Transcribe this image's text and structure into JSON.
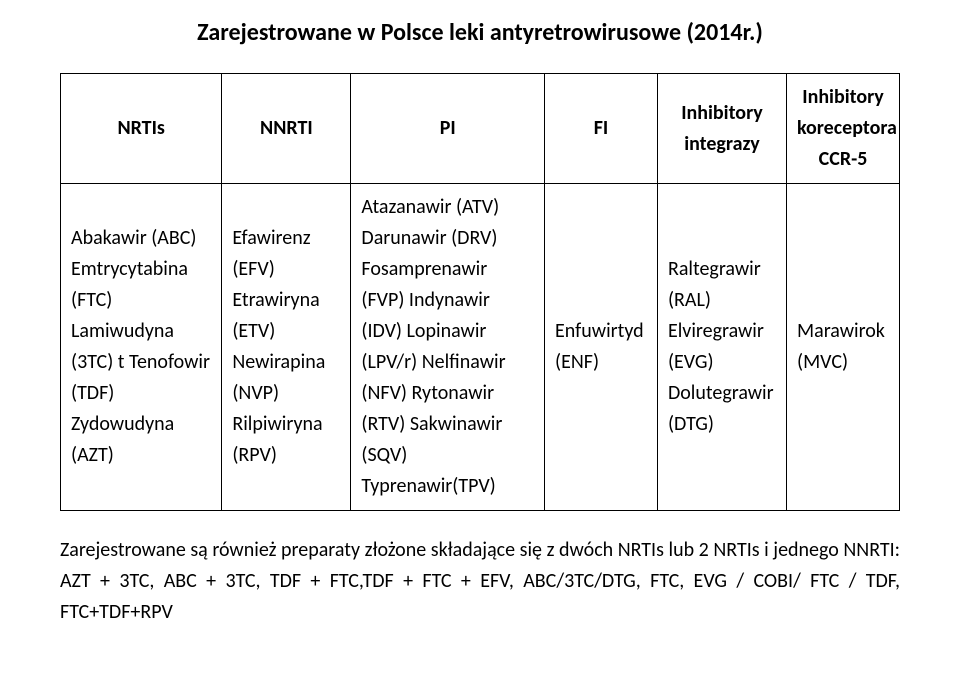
{
  "title": "Zarejestrowane w Polsce leki antyretrowirusowe (2014r.)",
  "headers": {
    "nrtis": "NRTIs",
    "nnrti": "NNRTI",
    "pi": "PI",
    "fi": "FI",
    "inh_int": "Inhibitory integrazy",
    "inh_ccr5": "Inhibitory koreceptora CCR-5"
  },
  "cells": {
    "nrtis": "Abakawir (ABC) Emtrycytabina (FTC) Lamiwudyna (3TC) t Tenofowir (TDF) Zydowudyna (AZT)",
    "nnrti": "Efawirenz (EFV) Etrawiryna (ETV) Newirapina (NVP) Rilpiwiryna (RPV)",
    "pi": "Atazanawir (ATV) Darunawir (DRV) Fosamprenawir (FVP) Indynawir (IDV) Lopinawir (LPV/r) Nelfinawir (NFV) Rytonawir (RTV) Sakwinawir (SQV) Typrenawir(TPV)",
    "fi": "Enfuwirtyd (ENF)",
    "inh_int": "Raltegrawir (RAL) Elviregrawir (EVG) Dolutegrawir (DTG)",
    "inh_ccr5": "Marawirok (MVC)"
  },
  "footnote": "Zarejestrowane są również preparaty złożone składające się z dwóch NRTIs lub 2 NRTIs i jednego NNRTI: AZT + 3TC, ABC + 3TC, TDF + FTC,TDF + FTC + EFV, ABC/3TC/DTG, FTC, EVG / COBI/ FTC / TDF, FTC+TDF+RPV",
  "style": {
    "background_color": "#ffffff",
    "text_color": "#000000",
    "border_color": "#000000",
    "title_fontsize": 24,
    "cell_fontsize": 20,
    "footnote_fontsize": 20,
    "font_family": "Calibri, Arial, sans-serif",
    "columns": [
      {
        "name": "NRTIs",
        "width_pct": 20
      },
      {
        "name": "NNRTI",
        "width_pct": 16
      },
      {
        "name": "PI",
        "width_pct": 24
      },
      {
        "name": "FI",
        "width_pct": 14
      },
      {
        "name": "Inhibitory integrazy",
        "width_pct": 16
      },
      {
        "name": "Inhibitory koreceptora CCR-5",
        "width_pct": 14
      }
    ]
  }
}
